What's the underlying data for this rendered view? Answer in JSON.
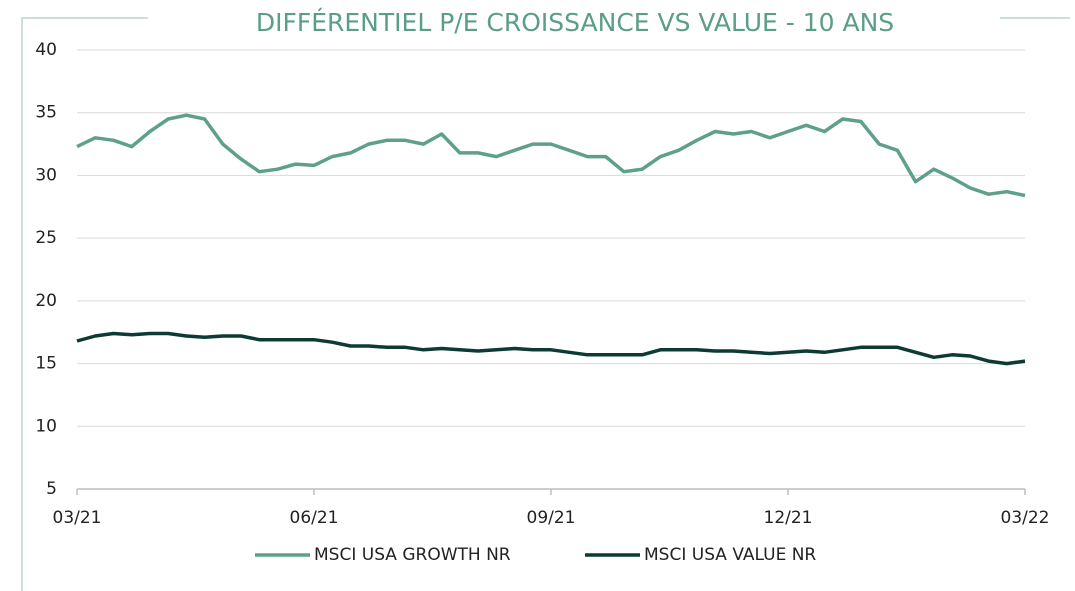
{
  "chart_data": {
    "type": "line",
    "title": "DIFFÉRENTIEL P/E CROISSANCE VS VALUE - 10 ANS",
    "categories": [
      "03/21",
      null,
      null,
      null,
      null,
      null,
      null,
      null,
      null,
      null,
      null,
      null,
      null,
      "06/21",
      null,
      null,
      null,
      null,
      null,
      null,
      null,
      null,
      null,
      null,
      null,
      null,
      "09/21",
      null,
      null,
      null,
      null,
      null,
      null,
      null,
      null,
      null,
      null,
      null,
      null,
      "12/21",
      null,
      null,
      null,
      null,
      null,
      null,
      null,
      null,
      null,
      null,
      null,
      null,
      "03/22"
    ],
    "series": [
      {
        "name": "MSCI USA GROWTH NR",
        "color": "#5fa088",
        "values": [
          32.3,
          33.0,
          32.8,
          32.3,
          33.5,
          34.5,
          34.8,
          34.5,
          32.5,
          31.3,
          30.3,
          30.5,
          30.9,
          30.8,
          31.5,
          31.8,
          32.5,
          32.8,
          32.8,
          32.5,
          33.3,
          31.8,
          31.8,
          31.5,
          32.0,
          32.5,
          32.5,
          32.0,
          31.5,
          31.5,
          30.3,
          30.5,
          31.5,
          32.0,
          32.8,
          33.5,
          33.3,
          33.5,
          33.0,
          33.5,
          34.0,
          33.5,
          34.5,
          34.3,
          32.5,
          32.0,
          29.5,
          30.5,
          29.8,
          29.0,
          28.5,
          28.7,
          28.4
        ]
      },
      {
        "name": "MSCI USA VALUE NR",
        "color": "#0d3b34",
        "values": [
          16.8,
          17.2,
          17.4,
          17.3,
          17.4,
          17.4,
          17.2,
          17.1,
          17.2,
          17.2,
          16.9,
          16.9,
          16.9,
          16.9,
          16.7,
          16.4,
          16.4,
          16.3,
          16.3,
          16.1,
          16.2,
          16.1,
          16.0,
          16.1,
          16.2,
          16.1,
          16.1,
          15.9,
          15.7,
          15.7,
          15.7,
          15.7,
          16.1,
          16.1,
          16.1,
          16.0,
          16.0,
          15.9,
          15.8,
          15.9,
          16.0,
          15.9,
          16.1,
          16.3,
          16.3,
          16.3,
          15.9,
          15.5,
          15.7,
          15.6,
          15.2,
          15.0,
          15.2
        ]
      }
    ],
    "ylim": [
      5,
      40
    ],
    "yticks": [
      5,
      10,
      15,
      20,
      25,
      30,
      35,
      40
    ],
    "grid": true,
    "legend": "bottom"
  }
}
